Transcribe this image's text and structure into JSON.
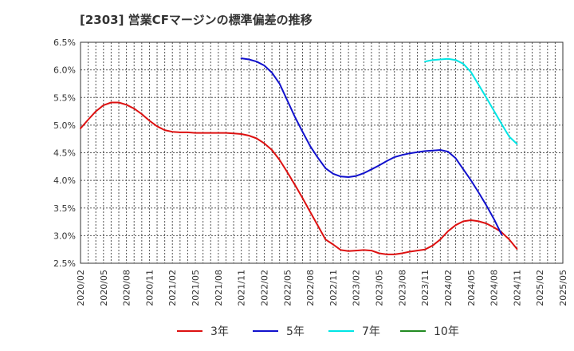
{
  "chart_data": {
    "type": "line",
    "title": "[2303]  営業CFマージンの標準偏差の推移",
    "xlabel": "",
    "ylabel": "",
    "ylim": [
      2.5,
      6.5
    ],
    "y_ticks": [
      "2.5%",
      "3.0%",
      "3.5%",
      "4.0%",
      "4.5%",
      "5.0%",
      "5.5%",
      "6.0%",
      "6.5%"
    ],
    "x_ticks": [
      "2020/02",
      "2020/05",
      "2020/08",
      "2020/11",
      "2021/02",
      "2021/05",
      "2021/08",
      "2021/11",
      "2022/02",
      "2022/05",
      "2022/08",
      "2022/11",
      "2023/02",
      "2023/05",
      "2023/08",
      "2023/11",
      "2024/02",
      "2024/05",
      "2024/08",
      "2024/11",
      "2025/02",
      "2025/05"
    ],
    "grid": true,
    "legend_position": "bottom",
    "series": [
      {
        "name": "3年",
        "color": "#dd1111",
        "points": [
          [
            "2020/02",
            4.94
          ],
          [
            "2020/03",
            5.1
          ],
          [
            "2020/04",
            5.25
          ],
          [
            "2020/05",
            5.36
          ],
          [
            "2020/06",
            5.41
          ],
          [
            "2020/07",
            5.41
          ],
          [
            "2020/08",
            5.37
          ],
          [
            "2020/09",
            5.3
          ],
          [
            "2020/10",
            5.2
          ],
          [
            "2020/11",
            5.08
          ],
          [
            "2020/12",
            4.98
          ],
          [
            "2021/01",
            4.91
          ],
          [
            "2021/02",
            4.88
          ],
          [
            "2021/03",
            4.87
          ],
          [
            "2021/04",
            4.87
          ],
          [
            "2021/05",
            4.86
          ],
          [
            "2021/06",
            4.86
          ],
          [
            "2021/07",
            4.86
          ],
          [
            "2021/08",
            4.86
          ],
          [
            "2021/09",
            4.86
          ],
          [
            "2021/10",
            4.85
          ],
          [
            "2021/11",
            4.84
          ],
          [
            "2021/12",
            4.81
          ],
          [
            "2022/01",
            4.76
          ],
          [
            "2022/02",
            4.67
          ],
          [
            "2022/03",
            4.55
          ],
          [
            "2022/04",
            4.37
          ],
          [
            "2022/05",
            4.15
          ],
          [
            "2022/06",
            3.92
          ],
          [
            "2022/07",
            3.68
          ],
          [
            "2022/08",
            3.43
          ],
          [
            "2022/09",
            3.18
          ],
          [
            "2022/10",
            2.93
          ],
          [
            "2022/11",
            2.84
          ],
          [
            "2022/12",
            2.74
          ],
          [
            "2023/01",
            2.72
          ],
          [
            "2023/02",
            2.73
          ],
          [
            "2023/03",
            2.74
          ],
          [
            "2023/04",
            2.73
          ],
          [
            "2023/05",
            2.68
          ],
          [
            "2023/06",
            2.66
          ],
          [
            "2023/07",
            2.66
          ],
          [
            "2023/08",
            2.68
          ],
          [
            "2023/09",
            2.71
          ],
          [
            "2023/10",
            2.73
          ],
          [
            "2023/11",
            2.75
          ],
          [
            "2023/12",
            2.82
          ],
          [
            "2024/01",
            2.93
          ],
          [
            "2024/02",
            3.08
          ],
          [
            "2024/03",
            3.19
          ],
          [
            "2024/04",
            3.26
          ],
          [
            "2024/05",
            3.28
          ],
          [
            "2024/06",
            3.26
          ],
          [
            "2024/07",
            3.22
          ],
          [
            "2024/08",
            3.15
          ],
          [
            "2024/09",
            3.06
          ],
          [
            "2024/10",
            2.93
          ],
          [
            "2024/11",
            2.76
          ]
        ]
      },
      {
        "name": "5年",
        "color": "#1111cc",
        "points": [
          [
            "2021/11",
            6.21
          ],
          [
            "2021/12",
            6.19
          ],
          [
            "2022/01",
            6.15
          ],
          [
            "2022/02",
            6.08
          ],
          [
            "2022/03",
            5.95
          ],
          [
            "2022/04",
            5.75
          ],
          [
            "2022/05",
            5.45
          ],
          [
            "2022/06",
            5.15
          ],
          [
            "2022/07",
            4.88
          ],
          [
            "2022/08",
            4.62
          ],
          [
            "2022/09",
            4.41
          ],
          [
            "2022/10",
            4.22
          ],
          [
            "2022/11",
            4.12
          ],
          [
            "2022/12",
            4.07
          ],
          [
            "2023/01",
            4.06
          ],
          [
            "2023/02",
            4.08
          ],
          [
            "2023/03",
            4.13
          ],
          [
            "2023/04",
            4.2
          ],
          [
            "2023/05",
            4.27
          ],
          [
            "2023/06",
            4.35
          ],
          [
            "2023/07",
            4.42
          ],
          [
            "2023/08",
            4.46
          ],
          [
            "2023/09",
            4.49
          ],
          [
            "2023/10",
            4.51
          ],
          [
            "2023/11",
            4.53
          ],
          [
            "2023/12",
            4.54
          ],
          [
            "2024/01",
            4.55
          ],
          [
            "2024/02",
            4.52
          ],
          [
            "2024/03",
            4.4
          ],
          [
            "2024/04",
            4.2
          ],
          [
            "2024/05",
            4.0
          ],
          [
            "2024/06",
            3.78
          ],
          [
            "2024/07",
            3.55
          ],
          [
            "2024/08",
            3.3
          ],
          [
            "2024/09",
            3.02
          ]
        ]
      },
      {
        "name": "7年",
        "color": "#00e5e5",
        "points": [
          [
            "2023/11",
            6.15
          ],
          [
            "2023/12",
            6.18
          ],
          [
            "2024/01",
            6.19
          ],
          [
            "2024/02",
            6.2
          ],
          [
            "2024/03",
            6.18
          ],
          [
            "2024/04",
            6.11
          ],
          [
            "2024/05",
            5.96
          ],
          [
            "2024/06",
            5.73
          ],
          [
            "2024/07",
            5.5
          ],
          [
            "2024/08",
            5.26
          ],
          [
            "2024/09",
            5.02
          ],
          [
            "2024/10",
            4.79
          ],
          [
            "2024/11",
            4.66
          ]
        ]
      },
      {
        "name": "10年",
        "color": "#228b22",
        "points": []
      }
    ]
  }
}
